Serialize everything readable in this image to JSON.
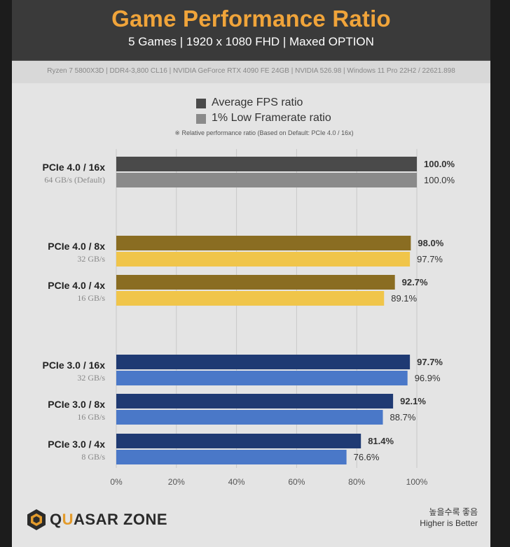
{
  "header": {
    "title": "Game Performance Ratio",
    "subtitle": "5 Games  |  1920 x 1080 FHD  |  Maxed OPTION",
    "spec": "Ryzen 7 5800X3D  |  DDR4-3,800 CL16  |  NVIDIA GeForce RTX 4090 FE 24GB  |  NVIDIA 526.98  |  Windows 11 Pro 22H2 / 22621.898"
  },
  "legend": {
    "items": [
      {
        "label": "Average FPS ratio",
        "color": "#4a4a4a"
      },
      {
        "label": "1% Low Framerate ratio",
        "color": "#8a8a8a"
      }
    ],
    "note": "※ Relative performance ratio (Based on Default: PCIe 4.0 / 16x)"
  },
  "chart_data": {
    "type": "bar",
    "orientation": "horizontal",
    "categories": [
      {
        "label": "PCIe 4.0 / 16x",
        "sublabel": "64 GB/s (Default)"
      },
      {
        "label": "PCIe 4.0 / 8x",
        "sublabel": "32 GB/s"
      },
      {
        "label": "PCIe 4.0 / 4x",
        "sublabel": "16 GB/s"
      },
      {
        "label": "PCIe 3.0 / 16x",
        "sublabel": "32 GB/s"
      },
      {
        "label": "PCIe 3.0 / 8x",
        "sublabel": "16 GB/s"
      },
      {
        "label": "PCIe 3.0 / 4x",
        "sublabel": "8 GB/s"
      }
    ],
    "series": [
      {
        "name": "Average FPS ratio",
        "values": [
          100.0,
          98.0,
          92.7,
          97.7,
          92.1,
          81.4
        ]
      },
      {
        "name": "1% Low Framerate ratio",
        "values": [
          100.0,
          97.7,
          89.1,
          96.9,
          88.7,
          76.6
        ]
      }
    ],
    "value_labels": [
      [
        "100.0%",
        "98.0%",
        "92.7%",
        "97.7%",
        "92.1%",
        "81.4%"
      ],
      [
        "100.0%",
        "97.7%",
        "89.1%",
        "96.9%",
        "88.7%",
        "76.6%"
      ]
    ],
    "color_groups": [
      {
        "avg": "#4a4a4a",
        "low": "#8a8a8a"
      },
      {
        "avg": "#8a6d22",
        "low": "#f0c54a"
      },
      {
        "avg": "#8a6d22",
        "low": "#f0c54a"
      },
      {
        "avg": "#1f3a73",
        "low": "#4a78c8"
      },
      {
        "avg": "#1f3a73",
        "low": "#4a78c8"
      },
      {
        "avg": "#1f3a73",
        "low": "#4a78c8"
      }
    ],
    "xlim": [
      0,
      100
    ],
    "xticks": [
      "0%",
      "20%",
      "40%",
      "60%",
      "80%",
      "100%"
    ],
    "grid": true
  },
  "footer": {
    "logo_a": "Q",
    "logo_b": "U",
    "logo_c": "ASAR ZONE",
    "note_ko": "높을수록 좋음",
    "note_en": "Higher is Better"
  }
}
